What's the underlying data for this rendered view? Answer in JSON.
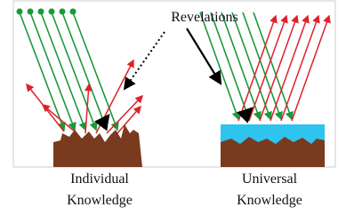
{
  "annotation": "Revelations",
  "panels": [
    {
      "label": [
        "Individual",
        "Knowledge"
      ]
    },
    {
      "label": [
        "Universal",
        "Knowledge"
      ]
    }
  ]
}
